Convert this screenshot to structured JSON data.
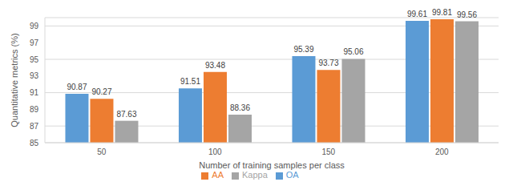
{
  "chart_data": {
    "type": "bar",
    "x_label": "Number of training samples per class",
    "y_label": "Quantitative metrics (%)",
    "categories": [
      "50",
      "100",
      "150",
      "200"
    ],
    "series": [
      {
        "name": "OA",
        "color": "#5b9bd5",
        "values": [
          90.87,
          91.51,
          95.39,
          99.61
        ]
      },
      {
        "name": "AA",
        "color": "#ed7d31",
        "values": [
          90.27,
          93.48,
          93.73,
          99.81
        ]
      },
      {
        "name": "Kappa",
        "color": "#a5a5a5",
        "values": [
          87.63,
          88.36,
          95.06,
          99.56
        ]
      }
    ],
    "ylim": [
      85,
      100
    ],
    "yticks": [
      85,
      87,
      89,
      91,
      93,
      95,
      97,
      99
    ],
    "grid": true,
    "legend": "bottom",
    "data_labels": true
  }
}
